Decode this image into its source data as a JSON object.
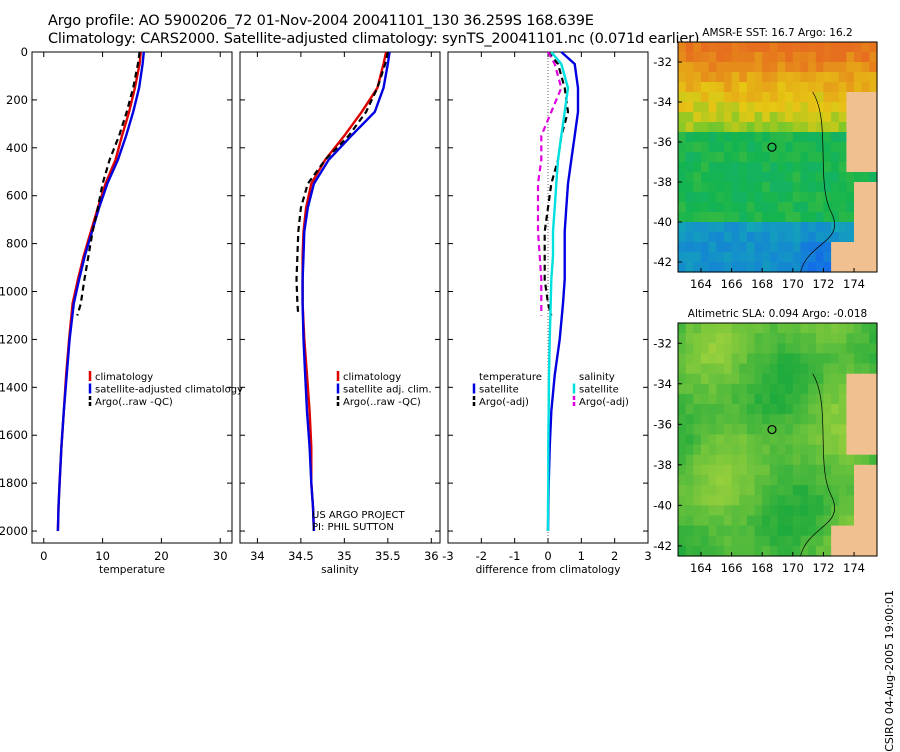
{
  "header": {
    "line1": "Argo profile: AO 5900206_72 01-Nov-2004 20041101_130 36.259S 168.639E",
    "line2": "Climatology: CARS2000. Satellite-adjusted climatology: synTS_20041101.nc (0.071d earlier)"
  },
  "side_label": "CSIRO 04-Aug-2005 19:00:01",
  "credit": {
    "line1": "US ARGO PROJECT",
    "line2": "PI: PHIL SUTTON"
  },
  "colors": {
    "climatology": "#e00000",
    "satellite": "#0000e0",
    "argo": "#000000",
    "salinity_sat": "#00e0e0",
    "salinity_argo": "#e000e0",
    "land": "#f0c090"
  },
  "chart_data": [
    {
      "type": "line",
      "id": "temperature",
      "xlabel": "temperature",
      "xlim": [
        -2,
        32
      ],
      "ylim": [
        2050,
        0
      ],
      "xticks": [
        "0",
        "10",
        "20",
        "30"
      ],
      "yticks": [
        "0",
        "200",
        "400",
        "600",
        "800",
        "1000",
        "1200",
        "1400",
        "1600",
        "1800",
        "2000"
      ],
      "legend": [
        "climatology",
        "satellite-adjusted climatology",
        "Argo(..raw -QC)"
      ],
      "series": [
        {
          "name": "climatology",
          "style": "solid",
          "x": [
            16.5,
            16.3,
            15.5,
            14.5,
            13.3,
            12.2,
            10.5,
            9.2,
            8.0,
            6.8,
            5.8,
            4.9,
            4.3,
            3.8,
            3.4,
            3.0,
            2.7,
            2.5,
            2.4
          ],
          "y": [
            0,
            50,
            150,
            250,
            350,
            450,
            550,
            650,
            750,
            850,
            950,
            1050,
            1200,
            1350,
            1500,
            1650,
            1800,
            1900,
            2000
          ]
        },
        {
          "name": "satellite-adjusted climatology",
          "style": "solid",
          "x": [
            17.0,
            16.8,
            16.2,
            15.2,
            14.0,
            12.6,
            10.8,
            9.4,
            8.2,
            7.0,
            6.0,
            5.1,
            4.4,
            3.9,
            3.4,
            3.0,
            2.7,
            2.5,
            2.4
          ],
          "y": [
            0,
            50,
            150,
            250,
            350,
            450,
            550,
            650,
            750,
            850,
            950,
            1050,
            1200,
            1350,
            1500,
            1650,
            1800,
            1900,
            2000
          ]
        },
        {
          "name": "Argo(..raw -QC)",
          "style": "dashed",
          "x": [
            16.3,
            16.0,
            15.2,
            14.1,
            12.8,
            11.2,
            10.0,
            9.2,
            8.3,
            7.6,
            6.9,
            6.3,
            5.7
          ],
          "y": [
            0,
            50,
            150,
            250,
            350,
            450,
            550,
            650,
            750,
            850,
            950,
            1050,
            1100
          ]
        }
      ]
    },
    {
      "type": "line",
      "id": "salinity",
      "xlabel": "salinity",
      "xlim": [
        33.8,
        36.1
      ],
      "ylim": [
        2050,
        0
      ],
      "xticks": [
        "34",
        "34.5",
        "35",
        "35.5",
        "36"
      ],
      "legend": [
        "climatology",
        "satellite adj. clim.",
        "Argo(..raw -QC)"
      ],
      "series": [
        {
          "name": "climatology",
          "style": "solid",
          "x": [
            35.48,
            35.45,
            35.38,
            35.2,
            35.0,
            34.78,
            34.62,
            34.56,
            34.53,
            34.52,
            34.52,
            34.52,
            34.54,
            34.57,
            34.6,
            34.62,
            34.62,
            34.64,
            34.65
          ],
          "y": [
            0,
            50,
            150,
            250,
            350,
            450,
            550,
            650,
            750,
            850,
            950,
            1050,
            1200,
            1350,
            1500,
            1650,
            1800,
            1900,
            2000
          ]
        },
        {
          "name": "satellite adj. clim.",
          "style": "solid",
          "x": [
            35.52,
            35.5,
            35.45,
            35.35,
            35.08,
            34.82,
            34.65,
            34.58,
            34.54,
            34.53,
            34.52,
            34.52,
            34.53,
            34.55,
            34.57,
            34.6,
            34.62,
            34.64,
            34.65
          ],
          "y": [
            0,
            50,
            150,
            250,
            350,
            450,
            550,
            650,
            750,
            850,
            950,
            1050,
            1200,
            1350,
            1500,
            1650,
            1800,
            1900,
            2000
          ]
        },
        {
          "name": "Argo(..raw -QC)",
          "style": "dashed",
          "x": [
            35.5,
            35.47,
            35.38,
            35.25,
            35.05,
            34.78,
            34.58,
            34.5,
            34.47,
            34.46,
            34.45,
            34.46,
            34.47
          ],
          "y": [
            0,
            50,
            150,
            250,
            350,
            450,
            550,
            650,
            750,
            850,
            950,
            1050,
            1100
          ]
        }
      ]
    },
    {
      "type": "line",
      "id": "difference",
      "xlabel": "difference from climatology",
      "xlim": [
        -3,
        3
      ],
      "ylim": [
        2050,
        0
      ],
      "xticks": [
        "-3",
        "-2",
        "-1",
        "0",
        "1",
        "2",
        "3"
      ],
      "legend_left": [
        "temperature",
        "satellite",
        "Argo(-adj)"
      ],
      "legend_right": [
        "salinity",
        "satellite",
        "Argo(-adj)"
      ],
      "series": [
        {
          "name": "temperature satellite",
          "style": "solid",
          "x": [
            0.4,
            0.8,
            0.9,
            0.9,
            0.8,
            0.7,
            0.6,
            0.55,
            0.5,
            0.5,
            0.5,
            0.45,
            0.35,
            0.2,
            0.1,
            0.05,
            0.02,
            0.01,
            0.0
          ],
          "y": [
            0,
            50,
            150,
            250,
            350,
            450,
            550,
            650,
            750,
            850,
            950,
            1050,
            1200,
            1350,
            1500,
            1650,
            1800,
            1900,
            2000
          ]
        },
        {
          "name": "temperature Argo(-adj)",
          "style": "dashed",
          "x": [
            0.0,
            0.3,
            0.5,
            0.6,
            0.4,
            0.3,
            0.1,
            0.0,
            -0.1,
            -0.1,
            -0.1,
            0.0,
            0.1
          ],
          "y": [
            0,
            50,
            150,
            250,
            350,
            450,
            550,
            650,
            750,
            850,
            950,
            1050,
            1100
          ]
        },
        {
          "name": "salinity satellite",
          "style": "solid",
          "x": [
            0.1,
            0.4,
            0.6,
            0.5,
            0.4,
            0.3,
            0.25,
            0.2,
            0.15,
            0.15,
            0.1,
            0.08,
            0.05,
            0.03,
            0.02,
            0.01,
            0.01,
            0.0,
            0.0
          ],
          "y": [
            0,
            50,
            150,
            250,
            350,
            450,
            550,
            650,
            750,
            850,
            950,
            1050,
            1200,
            1350,
            1500,
            1650,
            1800,
            1900,
            2000
          ]
        },
        {
          "name": "salinity Argo(-adj)",
          "style": "dashed",
          "x": [
            0.0,
            0.2,
            0.4,
            0.1,
            -0.2,
            -0.2,
            -0.3,
            -0.3,
            -0.3,
            -0.25,
            -0.2,
            -0.2,
            -0.2
          ],
          "y": [
            0,
            50,
            150,
            250,
            350,
            450,
            550,
            650,
            750,
            850,
            950,
            1050,
            1100
          ]
        }
      ]
    },
    {
      "type": "heatmap",
      "id": "sst-map",
      "title": "AMSR-E SST: 16.7 Argo: 16.2",
      "xticks": [
        "164",
        "166",
        "168",
        "170",
        "172",
        "174"
      ],
      "yticks": [
        "-32",
        "-34",
        "-36",
        "-38",
        "-40",
        "-42"
      ],
      "xlim": [
        162.5,
        175.5
      ],
      "ylim": [
        -42.5,
        -31
      ]
    },
    {
      "type": "heatmap",
      "id": "sla-map",
      "title": "Altimetric SLA: 0.094 Argo: -0.018",
      "xticks": [
        "164",
        "166",
        "168",
        "170",
        "172",
        "174"
      ],
      "yticks": [
        "-32",
        "-34",
        "-36",
        "-38",
        "-40",
        "-42"
      ],
      "xlim": [
        162.5,
        175.5
      ],
      "ylim": [
        -42.5,
        -31
      ]
    }
  ]
}
